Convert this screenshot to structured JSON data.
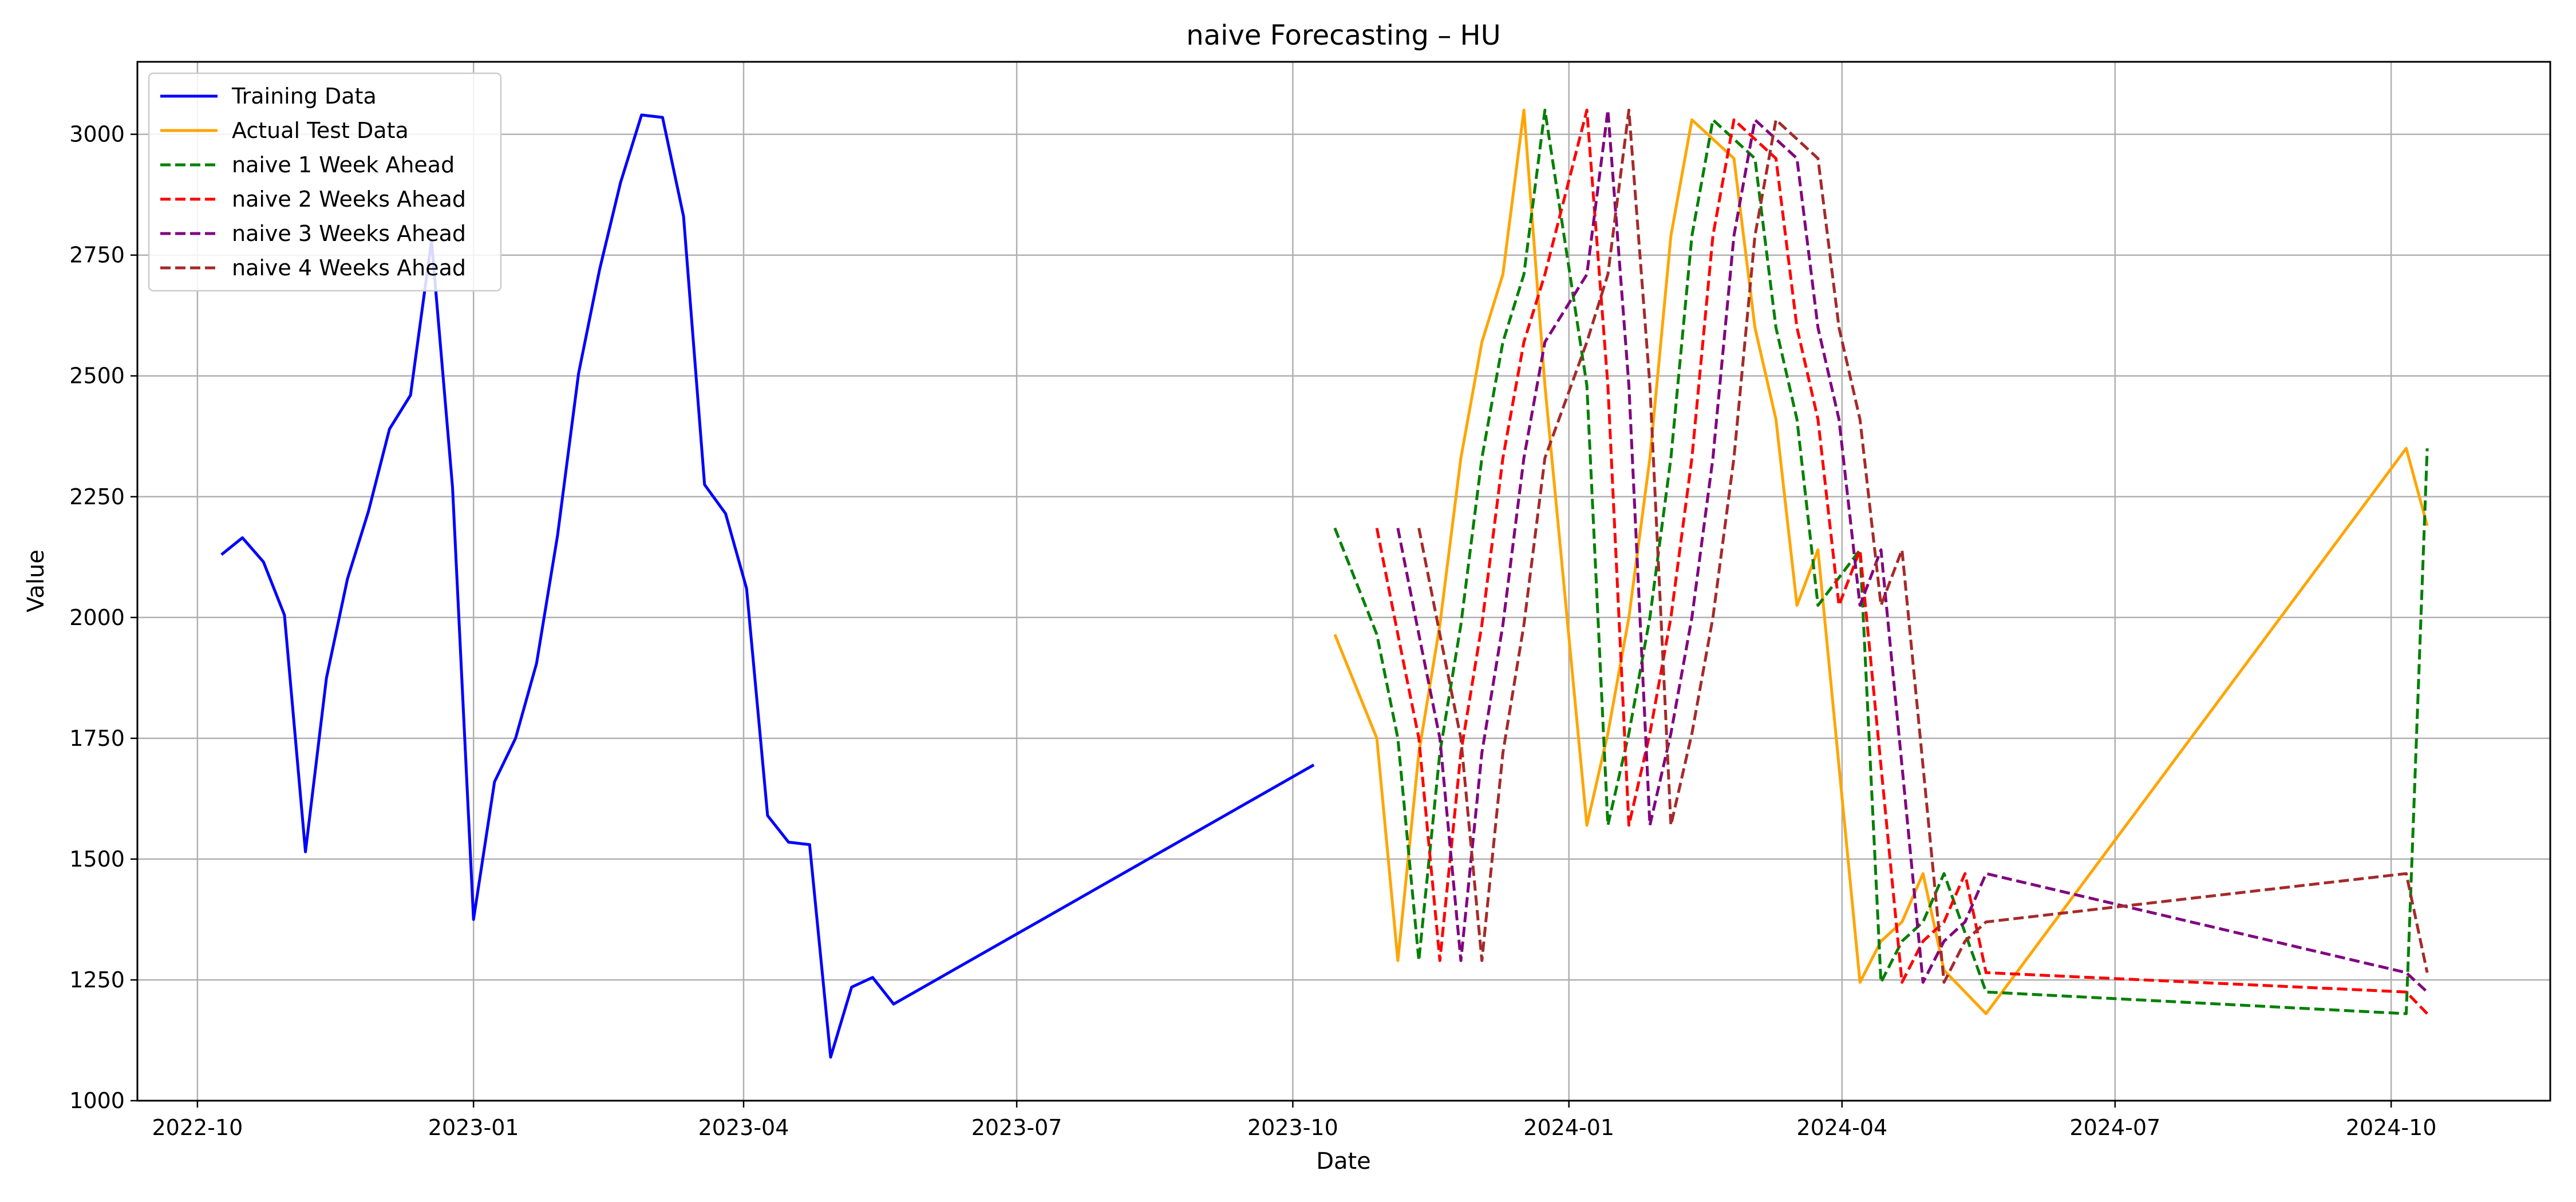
{
  "chart_data": {
    "type": "line",
    "title": "naive Forecasting – HU",
    "xlabel": "Date",
    "ylabel": "Value",
    "xlim": [
      "2022-09-11",
      "2024-11-23"
    ],
    "ylim": [
      1000,
      3150
    ],
    "x_ticks": [
      {
        "date": "2022-10-01",
        "label": "2022-10"
      },
      {
        "date": "2023-01-01",
        "label": "2023-01"
      },
      {
        "date": "2023-04-01",
        "label": "2023-04"
      },
      {
        "date": "2023-07-01",
        "label": "2023-07"
      },
      {
        "date": "2023-10-01",
        "label": "2023-10"
      },
      {
        "date": "2024-01-01",
        "label": "2024-01"
      },
      {
        "date": "2024-04-01",
        "label": "2024-04"
      },
      {
        "date": "2024-07-01",
        "label": "2024-07"
      },
      {
        "date": "2024-10-01",
        "label": "2024-10"
      }
    ],
    "y_ticks": [
      {
        "value": 1000,
        "label": "1000"
      },
      {
        "value": 1250,
        "label": "1250"
      },
      {
        "value": 1500,
        "label": "1500"
      },
      {
        "value": 1750,
        "label": "1750"
      },
      {
        "value": 2000,
        "label": "2000"
      },
      {
        "value": 2250,
        "label": "2250"
      },
      {
        "value": 2500,
        "label": "2500"
      },
      {
        "value": 2750,
        "label": "2750"
      },
      {
        "value": 3000,
        "label": "3000"
      }
    ],
    "grid": true,
    "legend_position": "upper-left",
    "series": [
      {
        "name": "Training Data",
        "color": "#0000ff",
        "dash": "solid",
        "points": [
          [
            "2022-10-09",
            2130
          ],
          [
            "2022-10-16",
            2165
          ],
          [
            "2022-10-23",
            2115
          ],
          [
            "2022-10-30",
            2005
          ],
          [
            "2022-11-06",
            1515
          ],
          [
            "2022-11-13",
            1875
          ],
          [
            "2022-11-20",
            2080
          ],
          [
            "2022-11-27",
            2220
          ],
          [
            "2022-12-04",
            2390
          ],
          [
            "2022-12-11",
            2460
          ],
          [
            "2022-12-18",
            2780
          ],
          [
            "2022-12-25",
            2270
          ],
          [
            "2023-01-01",
            1375
          ],
          [
            "2023-01-08",
            1660
          ],
          [
            "2023-01-15",
            1750
          ],
          [
            "2023-01-22",
            1905
          ],
          [
            "2023-01-29",
            2170
          ],
          [
            "2023-02-05",
            2505
          ],
          [
            "2023-02-12",
            2720
          ],
          [
            "2023-02-19",
            2900
          ],
          [
            "2023-02-26",
            3040
          ],
          [
            "2023-03-05",
            3035
          ],
          [
            "2023-03-12",
            2830
          ],
          [
            "2023-03-19",
            2275
          ],
          [
            "2023-03-26",
            2215
          ],
          [
            "2023-04-02",
            2060
          ],
          [
            "2023-04-09",
            1590
          ],
          [
            "2023-04-16",
            1535
          ],
          [
            "2023-04-23",
            1530
          ],
          [
            "2023-04-30",
            1090
          ],
          [
            "2023-05-07",
            1235
          ],
          [
            "2023-05-14",
            1255
          ],
          [
            "2023-05-21",
            1200
          ],
          [
            "2023-10-08",
            1695
          ]
        ]
      },
      {
        "name": "Actual Test Data",
        "color": "#ffa500",
        "dash": "solid",
        "points": [
          [
            "2023-10-15",
            1965
          ],
          [
            "2023-10-29",
            1750
          ],
          [
            "2023-11-05",
            1290
          ],
          [
            "2023-11-12",
            1720
          ],
          [
            "2023-11-19",
            1985
          ],
          [
            "2023-11-26",
            2330
          ],
          [
            "2023-12-03",
            2570
          ],
          [
            "2023-12-10",
            2710
          ],
          [
            "2023-12-17",
            3050
          ],
          [
            "2023-12-24",
            2480
          ],
          [
            "2024-01-07",
            1570
          ],
          [
            "2024-01-14",
            1760
          ],
          [
            "2024-01-21",
            2000
          ],
          [
            "2024-01-28",
            2330
          ],
          [
            "2024-02-04",
            2790
          ],
          [
            "2024-02-11",
            3030
          ],
          [
            "2024-02-25",
            2950
          ],
          [
            "2024-03-03",
            2600
          ],
          [
            "2024-03-10",
            2410
          ],
          [
            "2024-03-17",
            2025
          ],
          [
            "2024-03-24",
            2140
          ],
          [
            "2024-04-07",
            1245
          ],
          [
            "2024-04-14",
            1330
          ],
          [
            "2024-04-21",
            1370
          ],
          [
            "2024-04-28",
            1470
          ],
          [
            "2024-05-05",
            1270
          ],
          [
            "2024-05-19",
            1180
          ],
          [
            "2024-10-06",
            2350
          ],
          [
            "2024-10-13",
            2190
          ]
        ]
      },
      {
        "name": "naive 1 Week Ahead",
        "color": "#008000",
        "dash": "dashed",
        "points": [
          [
            "2023-10-15",
            2185
          ],
          [
            "2023-10-29",
            1965
          ],
          [
            "2023-11-05",
            1750
          ],
          [
            "2023-11-12",
            1290
          ],
          [
            "2023-11-19",
            1720
          ],
          [
            "2023-11-26",
            1985
          ],
          [
            "2023-12-03",
            2330
          ],
          [
            "2023-12-10",
            2570
          ],
          [
            "2023-12-17",
            2710
          ],
          [
            "2023-12-24",
            3050
          ],
          [
            "2024-01-07",
            2480
          ],
          [
            "2024-01-14",
            1570
          ],
          [
            "2024-01-21",
            1760
          ],
          [
            "2024-01-28",
            2000
          ],
          [
            "2024-02-04",
            2330
          ],
          [
            "2024-02-11",
            2790
          ],
          [
            "2024-02-18",
            3030
          ],
          [
            "2024-03-03",
            2950
          ],
          [
            "2024-03-10",
            2600
          ],
          [
            "2024-03-17",
            2410
          ],
          [
            "2024-03-24",
            2025
          ],
          [
            "2024-04-07",
            2140
          ],
          [
            "2024-04-14",
            1245
          ],
          [
            "2024-04-21",
            1330
          ],
          [
            "2024-04-28",
            1370
          ],
          [
            "2024-05-05",
            1470
          ],
          [
            "2024-05-19",
            1225
          ],
          [
            "2024-10-06",
            1180
          ],
          [
            "2024-10-13",
            2350
          ]
        ]
      },
      {
        "name": "naive 2 Weeks Ahead",
        "color": "#ff0000",
        "dash": "dashed",
        "points": [
          [
            "2023-10-29",
            2185
          ],
          [
            "2023-11-05",
            1965
          ],
          [
            "2023-11-12",
            1750
          ],
          [
            "2023-11-19",
            1290
          ],
          [
            "2023-11-26",
            1720
          ],
          [
            "2023-12-03",
            1985
          ],
          [
            "2023-12-10",
            2330
          ],
          [
            "2023-12-17",
            2570
          ],
          [
            "2023-12-24",
            2710
          ],
          [
            "2024-01-07",
            3050
          ],
          [
            "2024-01-14",
            2480
          ],
          [
            "2024-01-21",
            1570
          ],
          [
            "2024-01-28",
            1760
          ],
          [
            "2024-02-04",
            2000
          ],
          [
            "2024-02-11",
            2330
          ],
          [
            "2024-02-18",
            2790
          ],
          [
            "2024-02-25",
            3030
          ],
          [
            "2024-03-10",
            2950
          ],
          [
            "2024-03-17",
            2600
          ],
          [
            "2024-03-24",
            2410
          ],
          [
            "2024-03-31",
            2025
          ],
          [
            "2024-04-07",
            2140
          ],
          [
            "2024-04-21",
            1245
          ],
          [
            "2024-04-28",
            1330
          ],
          [
            "2024-05-05",
            1370
          ],
          [
            "2024-05-12",
            1470
          ],
          [
            "2024-05-19",
            1265
          ],
          [
            "2024-10-06",
            1225
          ],
          [
            "2024-10-13",
            1180
          ]
        ]
      },
      {
        "name": "naive 3 Weeks Ahead",
        "color": "#800080",
        "dash": "dashed",
        "points": [
          [
            "2023-11-05",
            2185
          ],
          [
            "2023-11-12",
            1965
          ],
          [
            "2023-11-19",
            1750
          ],
          [
            "2023-11-26",
            1290
          ],
          [
            "2023-12-03",
            1720
          ],
          [
            "2023-12-10",
            1985
          ],
          [
            "2023-12-17",
            2330
          ],
          [
            "2023-12-24",
            2570
          ],
          [
            "2024-01-07",
            2710
          ],
          [
            "2024-01-14",
            3050
          ],
          [
            "2024-01-21",
            2480
          ],
          [
            "2024-01-28",
            1570
          ],
          [
            "2024-02-04",
            1760
          ],
          [
            "2024-02-11",
            2000
          ],
          [
            "2024-02-18",
            2330
          ],
          [
            "2024-02-25",
            2790
          ],
          [
            "2024-03-03",
            3030
          ],
          [
            "2024-03-17",
            2950
          ],
          [
            "2024-03-24",
            2600
          ],
          [
            "2024-03-31",
            2410
          ],
          [
            "2024-04-07",
            2025
          ],
          [
            "2024-04-14",
            2140
          ],
          [
            "2024-04-28",
            1245
          ],
          [
            "2024-05-05",
            1330
          ],
          [
            "2024-05-12",
            1370
          ],
          [
            "2024-05-19",
            1470
          ],
          [
            "2024-10-06",
            1265
          ],
          [
            "2024-10-13",
            1225
          ]
        ]
      },
      {
        "name": "naive 4 Weeks Ahead",
        "color": "#a52a2a",
        "dash": "dashed",
        "points": [
          [
            "2023-11-12",
            2185
          ],
          [
            "2023-11-19",
            1965
          ],
          [
            "2023-11-26",
            1750
          ],
          [
            "2023-12-03",
            1290
          ],
          [
            "2023-12-10",
            1720
          ],
          [
            "2023-12-17",
            1985
          ],
          [
            "2023-12-24",
            2330
          ],
          [
            "2024-01-07",
            2570
          ],
          [
            "2024-01-14",
            2710
          ],
          [
            "2024-01-21",
            3050
          ],
          [
            "2024-01-28",
            2480
          ],
          [
            "2024-02-04",
            1570
          ],
          [
            "2024-02-11",
            1760
          ],
          [
            "2024-02-18",
            2000
          ],
          [
            "2024-02-25",
            2330
          ],
          [
            "2024-03-03",
            2790
          ],
          [
            "2024-03-10",
            3030
          ],
          [
            "2024-03-24",
            2950
          ],
          [
            "2024-03-31",
            2600
          ],
          [
            "2024-04-07",
            2410
          ],
          [
            "2024-04-14",
            2025
          ],
          [
            "2024-04-21",
            2140
          ],
          [
            "2024-05-05",
            1245
          ],
          [
            "2024-05-12",
            1330
          ],
          [
            "2024-05-19",
            1370
          ],
          [
            "2024-10-06",
            1470
          ],
          [
            "2024-10-13",
            1265
          ]
        ]
      }
    ]
  }
}
